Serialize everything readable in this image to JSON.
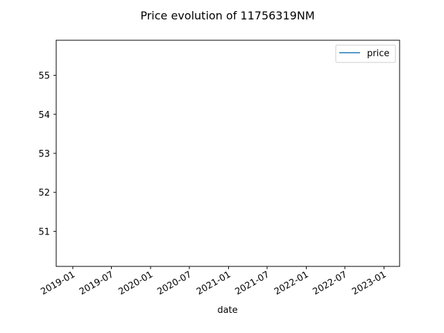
{
  "chart_data": {
    "type": "line",
    "title": "Price evolution of 11756319NM",
    "xlabel": "date",
    "ylabel": "",
    "x_ticks": [
      "2019-01",
      "2019-07",
      "2020-01",
      "2020-07",
      "2021-01",
      "2021-07",
      "2022-01",
      "2022-07",
      "2023-01"
    ],
    "y_ticks": [
      51,
      52,
      53,
      54,
      55
    ],
    "xlim": [
      "2018-10-15",
      "2023-03-15"
    ],
    "ylim": [
      50.1,
      55.9
    ],
    "grid": false,
    "legend_position": "top-right",
    "series": [
      {
        "name": "price",
        "color": "#1f77b4",
        "x": [],
        "y": []
      }
    ]
  }
}
